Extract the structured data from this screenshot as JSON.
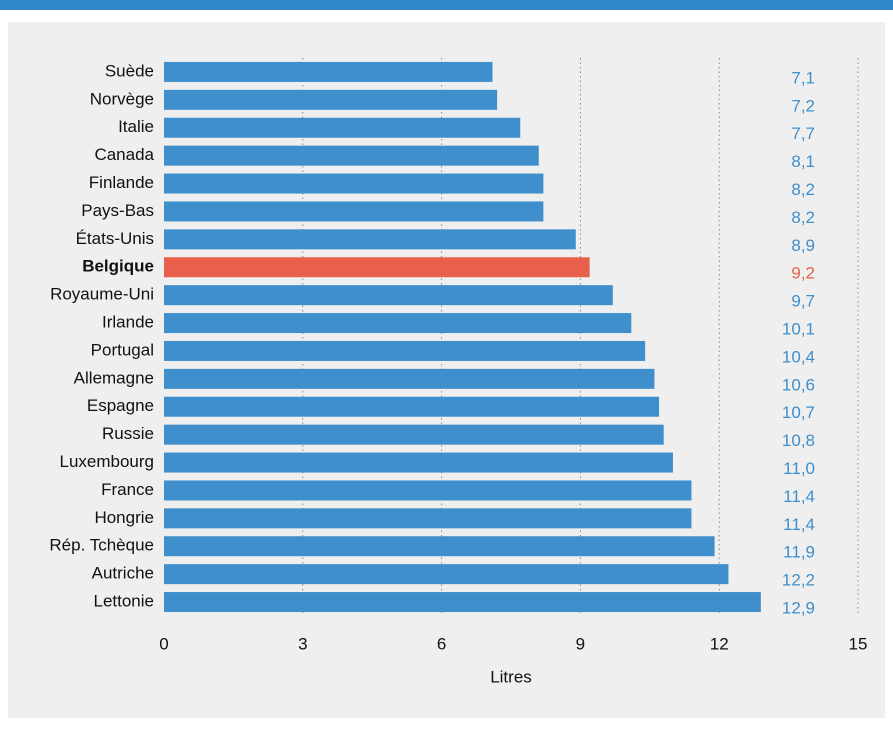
{
  "chart_data": {
    "type": "bar",
    "orientation": "horizontal",
    "categories": [
      "Suède",
      "Norvège",
      "Italie",
      "Canada",
      "Finlande",
      "Pays-Bas",
      "États-Unis",
      "Belgique",
      "Royaume-Uni",
      "Irlande",
      "Portugal",
      "Allemagne",
      "Espagne",
      "Russie",
      "Luxembourg",
      "France",
      "Hongrie",
      "Rép. Tchèque",
      "Autriche",
      "Lettonie"
    ],
    "values": [
      7.1,
      7.2,
      7.7,
      8.1,
      8.2,
      8.2,
      8.9,
      9.2,
      9.7,
      10.1,
      10.4,
      10.6,
      10.7,
      10.8,
      11.0,
      11.4,
      11.4,
      11.9,
      12.2,
      12.9
    ],
    "value_labels": [
      "7,1",
      "7,2",
      "7,7",
      "8,1",
      "8,2",
      "8,2",
      "8,9",
      "9,2",
      "9,7",
      "10,1",
      "10,4",
      "10,6",
      "10,7",
      "10,8",
      "11,0",
      "11,4",
      "11,4",
      "11,9",
      "12,2",
      "12,9"
    ],
    "color": "#3f8fcc",
    "highlight": "Belgique",
    "highlight_color": "#e8604c",
    "xlabel": "Litres",
    "xlim": [
      0,
      15
    ],
    "xticks": [
      0,
      3,
      6,
      9,
      12,
      15
    ],
    "grid": true
  }
}
